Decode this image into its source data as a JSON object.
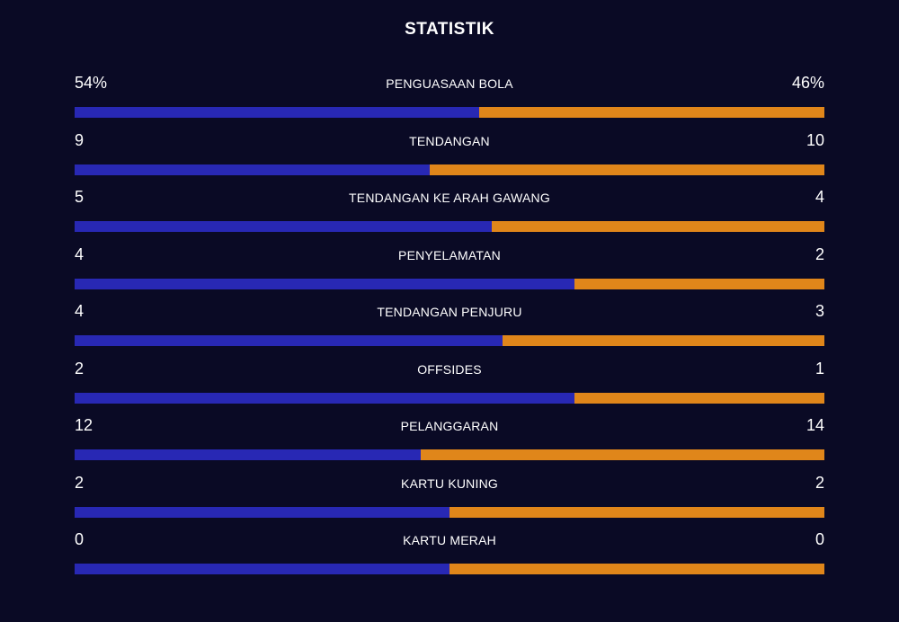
{
  "title": "STATISTIK",
  "colors": {
    "home": "#2828b4",
    "away": "#e0861a",
    "background": "#0a0a25"
  },
  "stats": [
    {
      "label": "PENGUASAAN BOLA",
      "left": "54%",
      "right": "46%",
      "home_share": 0.54
    },
    {
      "label": "TENDANGAN",
      "left": "9",
      "right": "10",
      "home_share": 0.474
    },
    {
      "label": "TENDANGAN KE ARAH GAWANG",
      "left": "5",
      "right": "4",
      "home_share": 0.556
    },
    {
      "label": "PENYELAMATAN",
      "left": "4",
      "right": "2",
      "home_share": 0.667
    },
    {
      "label": "TENDANGAN PENJURU",
      "left": "4",
      "right": "3",
      "home_share": 0.571
    },
    {
      "label": "OFFSIDES",
      "left": "2",
      "right": "1",
      "home_share": 0.667
    },
    {
      "label": "PELANGGARAN",
      "left": "12",
      "right": "14",
      "home_share": 0.462
    },
    {
      "label": "KARTU KUNING",
      "left": "2",
      "right": "2",
      "home_share": 0.5
    },
    {
      "label": "KARTU MERAH",
      "left": "0",
      "right": "0",
      "home_share": 0.5
    }
  ]
}
